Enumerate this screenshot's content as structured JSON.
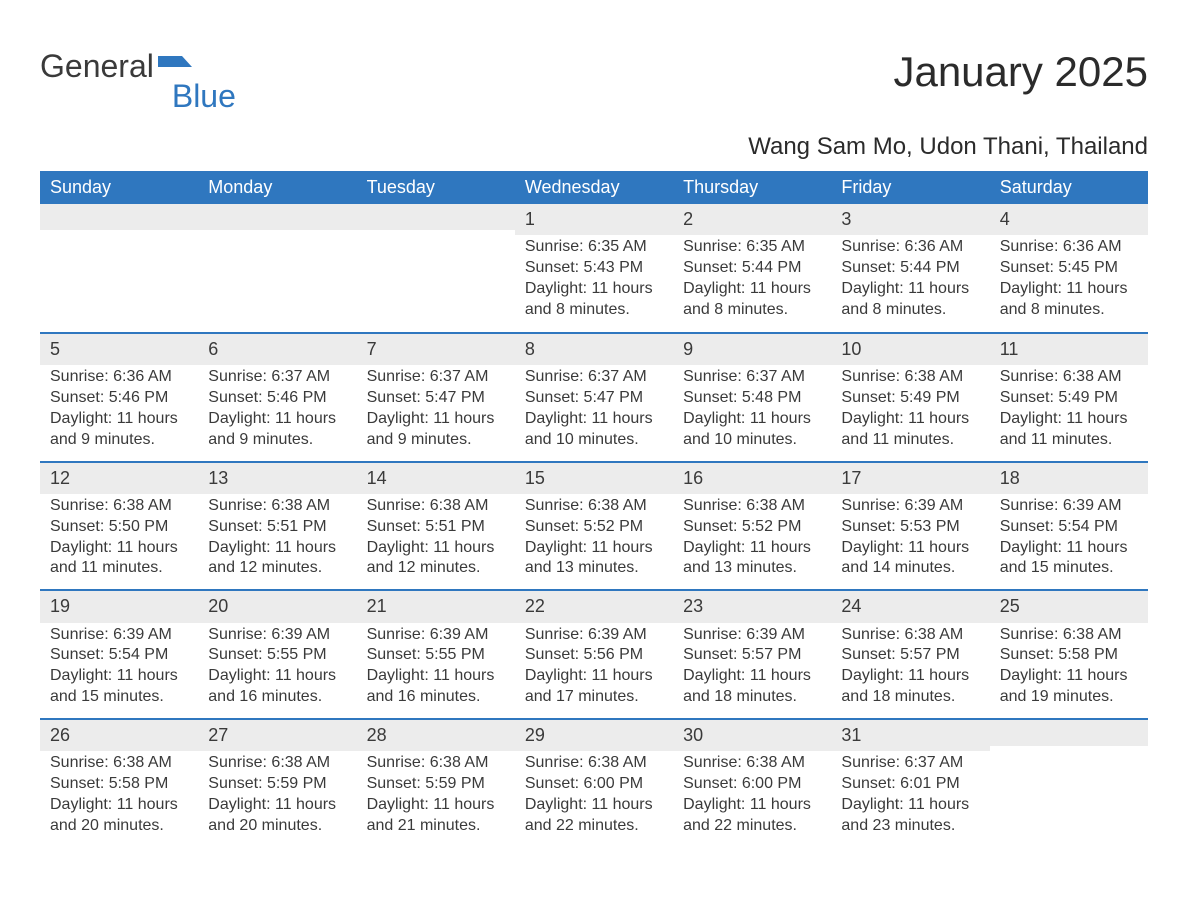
{
  "logo": {
    "text1": "General",
    "text2": "Blue"
  },
  "title": "January 2025",
  "location": "Wang Sam Mo, Udon Thani, Thailand",
  "colors": {
    "header_bg": "#2f77bf",
    "header_text": "#ffffff",
    "daynum_bg": "#ececec",
    "text": "#3a3a3a",
    "page_bg": "#ffffff",
    "week_border": "#2f77bf"
  },
  "typography": {
    "title_fontsize": 42,
    "location_fontsize": 24,
    "dayheader_fontsize": 18,
    "body_fontsize": 16
  },
  "day_headers": [
    "Sunday",
    "Monday",
    "Tuesday",
    "Wednesday",
    "Thursday",
    "Friday",
    "Saturday"
  ],
  "labels": {
    "sunrise": "Sunrise:",
    "sunset": "Sunset:",
    "daylight": "Daylight:"
  },
  "weeks": [
    [
      {
        "empty": true
      },
      {
        "empty": true
      },
      {
        "empty": true
      },
      {
        "num": "1",
        "sunrise": "6:35 AM",
        "sunset": "5:43 PM",
        "daylight": "11 hours and 8 minutes."
      },
      {
        "num": "2",
        "sunrise": "6:35 AM",
        "sunset": "5:44 PM",
        "daylight": "11 hours and 8 minutes."
      },
      {
        "num": "3",
        "sunrise": "6:36 AM",
        "sunset": "5:44 PM",
        "daylight": "11 hours and 8 minutes."
      },
      {
        "num": "4",
        "sunrise": "6:36 AM",
        "sunset": "5:45 PM",
        "daylight": "11 hours and 8 minutes."
      }
    ],
    [
      {
        "num": "5",
        "sunrise": "6:36 AM",
        "sunset": "5:46 PM",
        "daylight": "11 hours and 9 minutes."
      },
      {
        "num": "6",
        "sunrise": "6:37 AM",
        "sunset": "5:46 PM",
        "daylight": "11 hours and 9 minutes."
      },
      {
        "num": "7",
        "sunrise": "6:37 AM",
        "sunset": "5:47 PM",
        "daylight": "11 hours and 9 minutes."
      },
      {
        "num": "8",
        "sunrise": "6:37 AM",
        "sunset": "5:47 PM",
        "daylight": "11 hours and 10 minutes."
      },
      {
        "num": "9",
        "sunrise": "6:37 AM",
        "sunset": "5:48 PM",
        "daylight": "11 hours and 10 minutes."
      },
      {
        "num": "10",
        "sunrise": "6:38 AM",
        "sunset": "5:49 PM",
        "daylight": "11 hours and 11 minutes."
      },
      {
        "num": "11",
        "sunrise": "6:38 AM",
        "sunset": "5:49 PM",
        "daylight": "11 hours and 11 minutes."
      }
    ],
    [
      {
        "num": "12",
        "sunrise": "6:38 AM",
        "sunset": "5:50 PM",
        "daylight": "11 hours and 11 minutes."
      },
      {
        "num": "13",
        "sunrise": "6:38 AM",
        "sunset": "5:51 PM",
        "daylight": "11 hours and 12 minutes."
      },
      {
        "num": "14",
        "sunrise": "6:38 AM",
        "sunset": "5:51 PM",
        "daylight": "11 hours and 12 minutes."
      },
      {
        "num": "15",
        "sunrise": "6:38 AM",
        "sunset": "5:52 PM",
        "daylight": "11 hours and 13 minutes."
      },
      {
        "num": "16",
        "sunrise": "6:38 AM",
        "sunset": "5:52 PM",
        "daylight": "11 hours and 13 minutes."
      },
      {
        "num": "17",
        "sunrise": "6:39 AM",
        "sunset": "5:53 PM",
        "daylight": "11 hours and 14 minutes."
      },
      {
        "num": "18",
        "sunrise": "6:39 AM",
        "sunset": "5:54 PM",
        "daylight": "11 hours and 15 minutes."
      }
    ],
    [
      {
        "num": "19",
        "sunrise": "6:39 AM",
        "sunset": "5:54 PM",
        "daylight": "11 hours and 15 minutes."
      },
      {
        "num": "20",
        "sunrise": "6:39 AM",
        "sunset": "5:55 PM",
        "daylight": "11 hours and 16 minutes."
      },
      {
        "num": "21",
        "sunrise": "6:39 AM",
        "sunset": "5:55 PM",
        "daylight": "11 hours and 16 minutes."
      },
      {
        "num": "22",
        "sunrise": "6:39 AM",
        "sunset": "5:56 PM",
        "daylight": "11 hours and 17 minutes."
      },
      {
        "num": "23",
        "sunrise": "6:39 AM",
        "sunset": "5:57 PM",
        "daylight": "11 hours and 18 minutes."
      },
      {
        "num": "24",
        "sunrise": "6:38 AM",
        "sunset": "5:57 PM",
        "daylight": "11 hours and 18 minutes."
      },
      {
        "num": "25",
        "sunrise": "6:38 AM",
        "sunset": "5:58 PM",
        "daylight": "11 hours and 19 minutes."
      }
    ],
    [
      {
        "num": "26",
        "sunrise": "6:38 AM",
        "sunset": "5:58 PM",
        "daylight": "11 hours and 20 minutes."
      },
      {
        "num": "27",
        "sunrise": "6:38 AM",
        "sunset": "5:59 PM",
        "daylight": "11 hours and 20 minutes."
      },
      {
        "num": "28",
        "sunrise": "6:38 AM",
        "sunset": "5:59 PM",
        "daylight": "11 hours and 21 minutes."
      },
      {
        "num": "29",
        "sunrise": "6:38 AM",
        "sunset": "6:00 PM",
        "daylight": "11 hours and 22 minutes."
      },
      {
        "num": "30",
        "sunrise": "6:38 AM",
        "sunset": "6:00 PM",
        "daylight": "11 hours and 22 minutes."
      },
      {
        "num": "31",
        "sunrise": "6:37 AM",
        "sunset": "6:01 PM",
        "daylight": "11 hours and 23 minutes."
      },
      {
        "empty": true
      }
    ]
  ]
}
